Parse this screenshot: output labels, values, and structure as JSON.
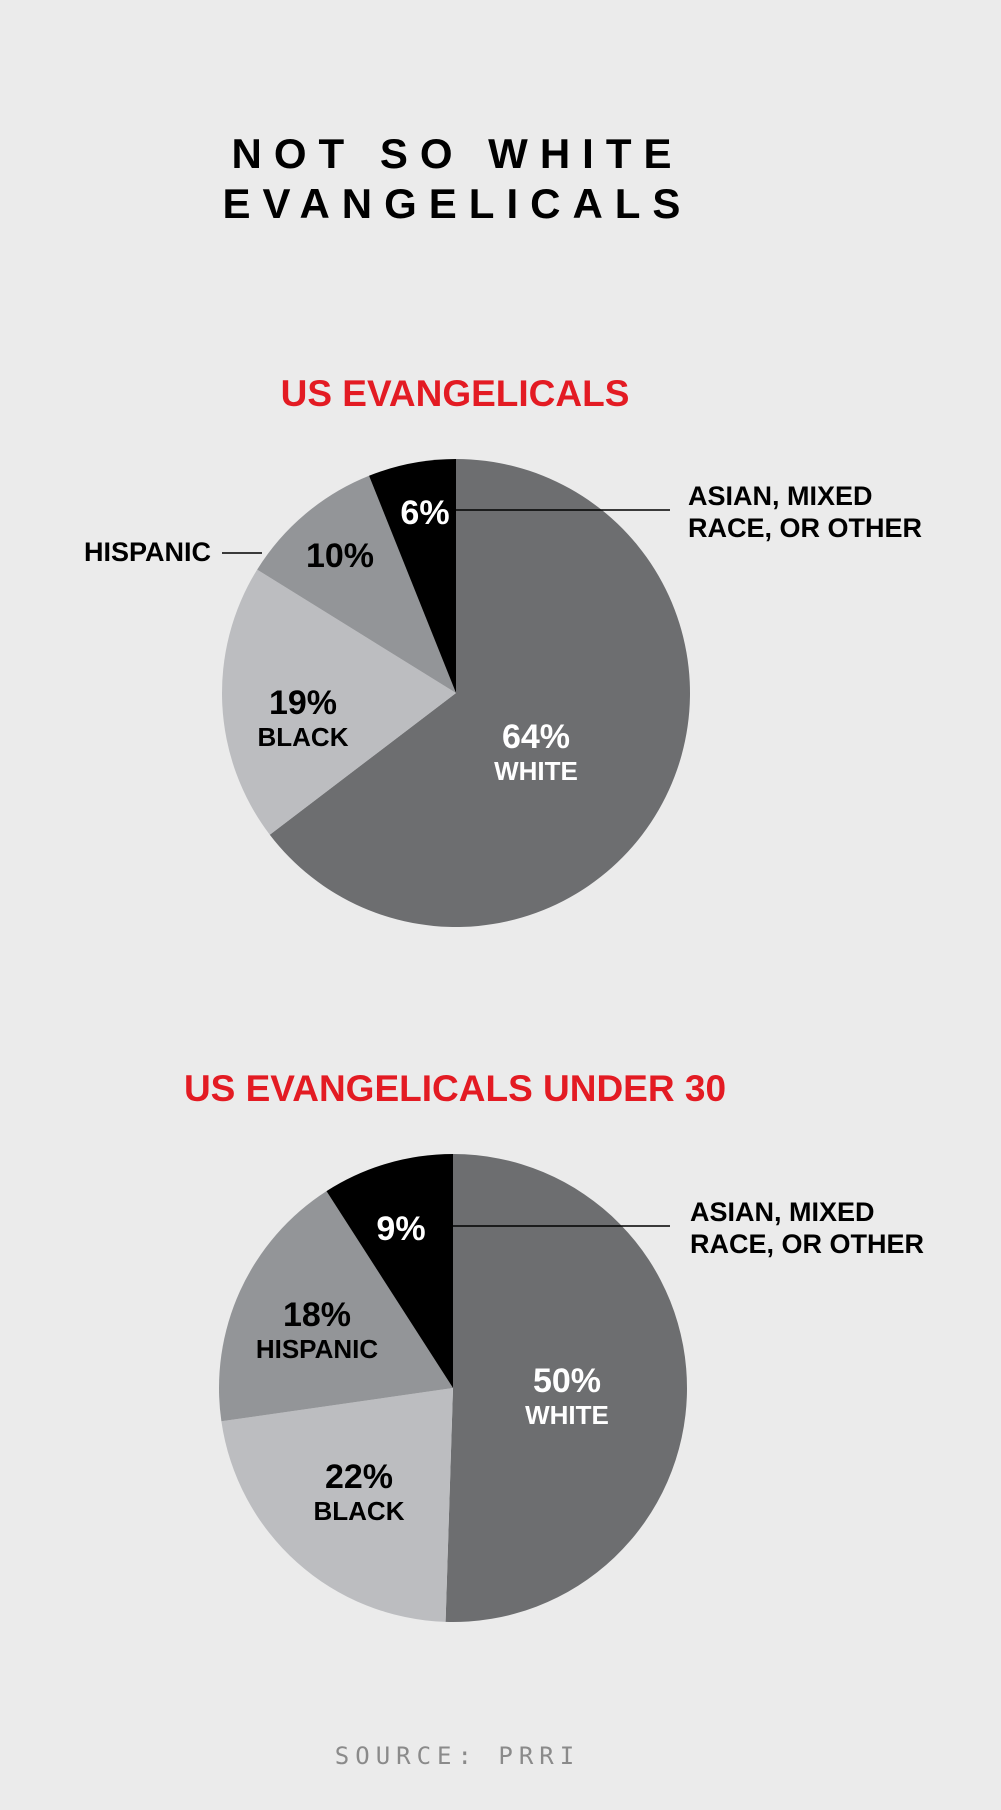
{
  "title_line1": "NOT SO WHITE",
  "title_line2": "EVANGELICALS",
  "source": "SOURCE: PRRI",
  "chart_data": [
    {
      "type": "pie",
      "title": "US EVANGELICALS",
      "slices": [
        {
          "value": 64,
          "pct": "64%",
          "label": "WHITE",
          "color": "#6d6e70",
          "text_color": "#ffffff"
        },
        {
          "value": 19,
          "pct": "19%",
          "label": "BLACK",
          "color": "#bcbdc0",
          "text_color": "#000000"
        },
        {
          "value": 10,
          "pct": "10%",
          "label": "HISPANIC",
          "color": "#939598",
          "text_color": "#000000"
        },
        {
          "value": 6,
          "pct": "6%",
          "label": "ASIAN, MIXED RACE, OR OTHER",
          "color": "#000000",
          "text_color": "#ffffff"
        }
      ],
      "callouts": {
        "hispanic": "HISPANIC",
        "other_line1": "ASIAN, MIXED",
        "other_line2": "RACE, OR OTHER"
      }
    },
    {
      "type": "pie",
      "title": "US EVANGELICALS UNDER 30",
      "slices": [
        {
          "value": 50,
          "pct": "50%",
          "label": "WHITE",
          "color": "#6d6e70",
          "text_color": "#ffffff"
        },
        {
          "value": 22,
          "pct": "22%",
          "label": "BLACK",
          "color": "#bcbdc0",
          "text_color": "#000000"
        },
        {
          "value": 18,
          "pct": "18%",
          "label": "HISPANIC",
          "color": "#939598",
          "text_color": "#000000"
        },
        {
          "value": 9,
          "pct": "9%",
          "label": "ASIAN, MIXED RACE, OR OTHER",
          "color": "#000000",
          "text_color": "#ffffff"
        }
      ],
      "callouts": {
        "other_line1": "ASIAN, MIXED",
        "other_line2": "RACE, OR OTHER"
      }
    }
  ]
}
